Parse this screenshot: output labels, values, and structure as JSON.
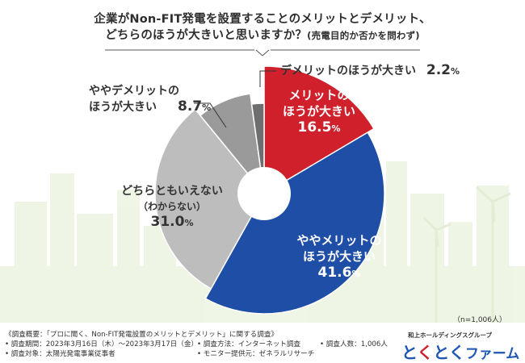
{
  "title": {
    "line1": "企業がNon-FIT発電を設置することのメリットとデメリット、",
    "line2": "どちらのほうが大きいと思いますか？",
    "line2_sub": "(売電目的か否かを問わず)"
  },
  "chart_data": {
    "type": "pie",
    "style": "donut",
    "start": "12 o'clock",
    "direction": "clockwise",
    "slices": [
      {
        "label": "メリットのほうが大きい",
        "value": 16.5,
        "color": "#d0202b"
      },
      {
        "label": "ややメリットのほうが大きい",
        "value": 41.6,
        "color": "#1f4ea6"
      },
      {
        "label": "どちらともいえない（わからない）",
        "value": 31.0,
        "color": "#bdbdbd"
      },
      {
        "label": "ややデメリットのほうが大きい",
        "value": 8.7,
        "color": "#9a9a9a"
      },
      {
        "label": "デメリットのほうが大きい",
        "value": 2.2,
        "color": "#6e6e6e"
      }
    ]
  },
  "labels": {
    "merit": {
      "line1": "メリットの",
      "line2": "ほうが大きい",
      "pct_int": "16.",
      "pct_dec": "5",
      "pct_sign": "%"
    },
    "slight_merit": {
      "line1": "ややメリットの",
      "line2": "ほうが大きい",
      "pct_int": "41.",
      "pct_dec": "6",
      "pct_sign": "%"
    },
    "neutral": {
      "line1": "どちらともいえない",
      "line2": "（わからない）",
      "pct_int": "31.",
      "pct_dec": "0",
      "pct_sign": "%"
    },
    "slight_demerit": {
      "line1": "ややデメリットの",
      "line2": "ほうが大きい",
      "pct_int": "8.",
      "pct_dec": "7",
      "pct_sign": "%"
    },
    "demerit": {
      "line1": "デメリットのほうが大きい",
      "pct_int": "2.",
      "pct_dec": "2",
      "pct_sign": "%"
    }
  },
  "sample_note": "（n=1,006人）",
  "footer": {
    "overview": "《調査概要：「プロに聞く、Non-FIT発電設置のメリットとデメリット」に関する調査》",
    "period": "• 調査期間：2023年3月16日（木）〜2023年3月17日（金）",
    "method": "• 調査方法：インターネット調査",
    "count": "• 調査人数：1,006人",
    "target": "• 調査対象：太陽光発電事業従事者",
    "provider": "• モニター提供元：ゼネラルリサーチ"
  },
  "logo": {
    "company": "和上ホールディングスグループ",
    "brand_part1": "と",
    "brand_part2": "く",
    "brand_part3": "とく",
    "brand_part4": "ファーム"
  }
}
